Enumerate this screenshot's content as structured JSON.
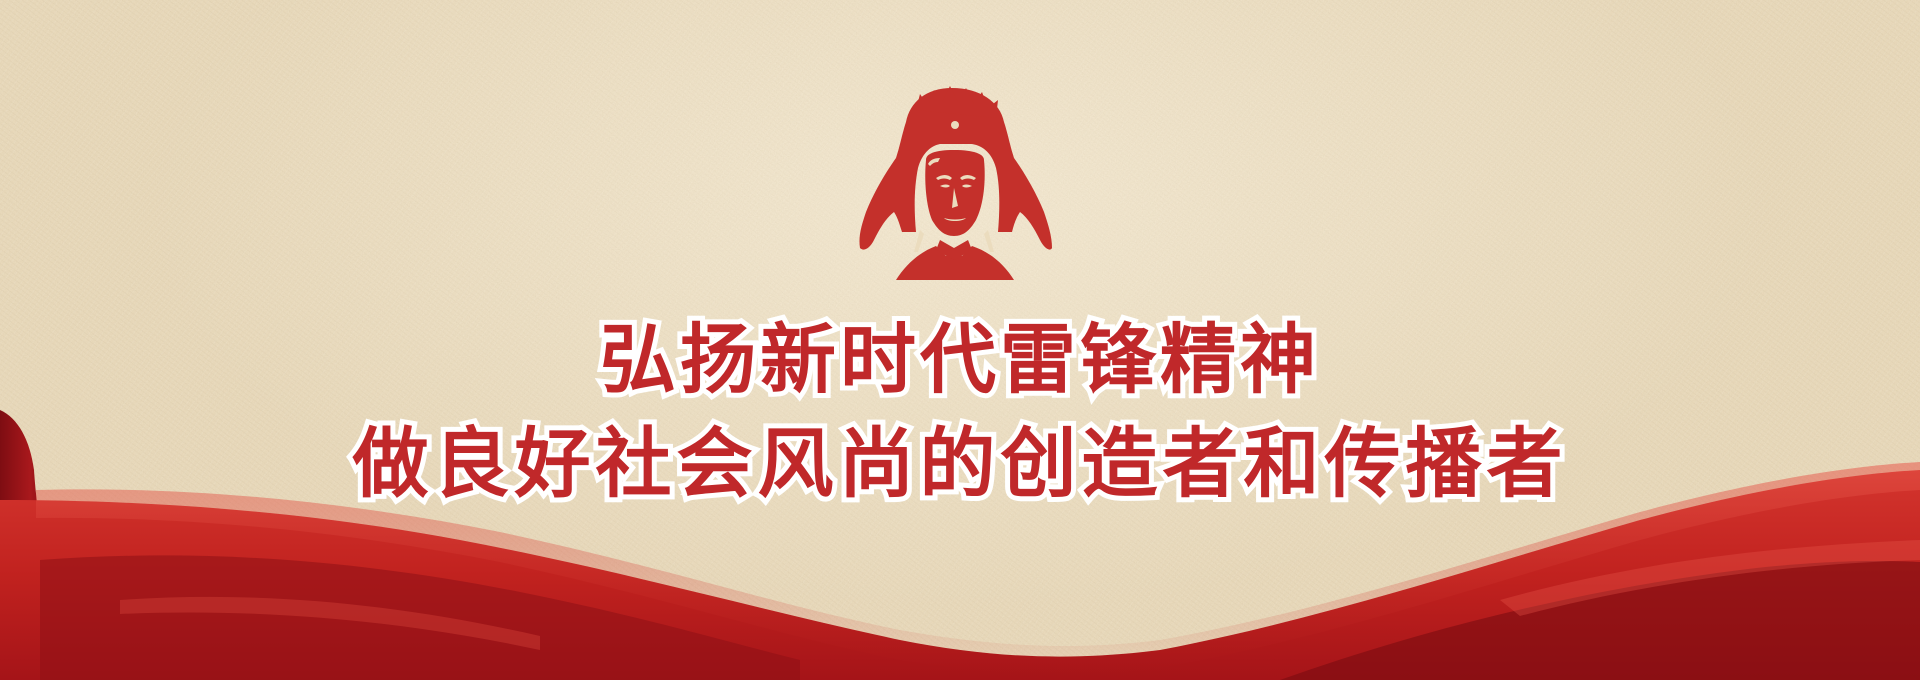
{
  "banner": {
    "slogan_line1": "弘扬新时代雷锋精神",
    "slogan_line2": "做良好社会风尚的创造者和传播者",
    "colors": {
      "background": "#ebdcbe",
      "accent_red": "#c0282a",
      "ribbon_dark": "#8e1116",
      "text_outline": "#ffffff"
    },
    "icons": {
      "portrait": "lei-feng-portrait-icon",
      "ribbon": "red-flag-ribbon-icon"
    }
  }
}
